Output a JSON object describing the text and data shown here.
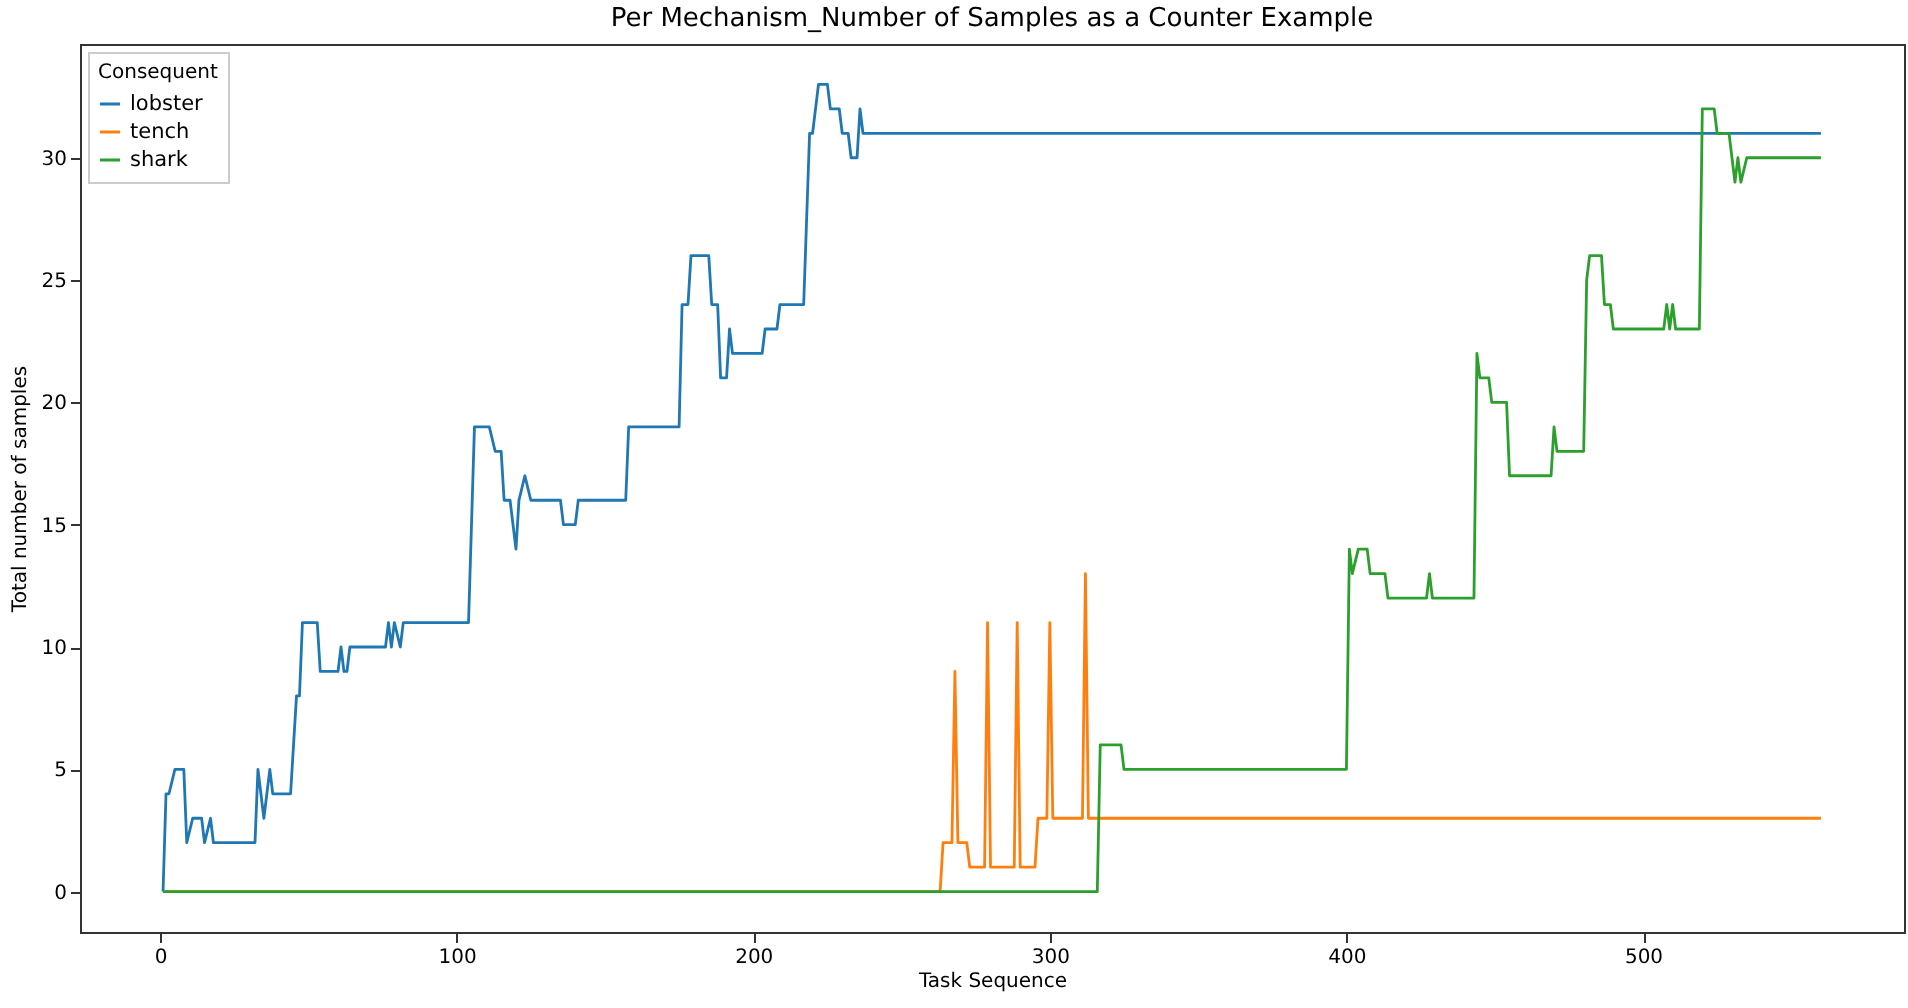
{
  "chart_data": {
    "type": "line",
    "title": "Per Mechanism_Number of Samples as a Counter Example",
    "xlabel": "Task Sequence",
    "ylabel": "Total number of samples",
    "legend_title": "Consequent",
    "legend": "top left",
    "grid": false,
    "line_style": "solid",
    "marker": "none",
    "xlim": [
      -27,
      588
    ],
    "xticks": [
      0,
      100,
      200,
      300,
      400,
      500
    ],
    "ylim": [
      -1.65,
      34.65
    ],
    "yticks": [
      0,
      5,
      10,
      15,
      20,
      25,
      30
    ],
    "series": [
      {
        "name": "lobster",
        "color": "#1f77b4",
        "x": [
          1,
          2,
          3,
          5,
          8,
          9,
          11,
          14,
          15,
          17,
          18,
          32,
          33,
          35,
          37,
          38,
          44,
          46,
          47,
          48,
          53,
          54,
          60,
          61,
          62,
          63,
          64,
          76,
          77,
          78,
          79,
          81,
          82,
          104,
          106,
          111,
          113,
          115,
          116,
          118,
          120,
          121,
          123,
          125,
          135,
          136,
          140,
          141,
          157,
          158,
          175,
          176,
          178,
          179,
          185,
          186,
          188,
          189,
          191,
          192,
          193,
          203,
          204,
          208,
          209,
          217,
          219,
          220,
          222,
          225,
          226,
          229,
          230,
          232,
          233,
          235,
          236,
          237,
          560
        ],
        "values": [
          0,
          4,
          4,
          5,
          5,
          2,
          3,
          3,
          2,
          3,
          2,
          2,
          5,
          3,
          5,
          4,
          4,
          8,
          8,
          11,
          11,
          9,
          9,
          10,
          9,
          9,
          10,
          10,
          11,
          10,
          11,
          10,
          11,
          11,
          19,
          19,
          18,
          18,
          16,
          16,
          14,
          16,
          17,
          16,
          16,
          15,
          15,
          16,
          16,
          19,
          19,
          24,
          24,
          26,
          26,
          24,
          24,
          21,
          21,
          23,
          22,
          22,
          23,
          23,
          24,
          24,
          31,
          31,
          33,
          33,
          32,
          32,
          31,
          31,
          30,
          30,
          32,
          31,
          31
        ]
      },
      {
        "name": "tench",
        "color": "#ff7f0e",
        "x": [
          1,
          263,
          264,
          267,
          268,
          269,
          272,
          273,
          278,
          279,
          280,
          288,
          289,
          290,
          295,
          296,
          299,
          300,
          301,
          311,
          312,
          313,
          560
        ],
        "values": [
          0,
          0,
          2,
          2,
          9,
          2,
          2,
          1,
          1,
          11,
          1,
          1,
          11,
          1,
          1,
          3,
          3,
          11,
          3,
          3,
          13,
          3,
          3
        ]
      },
      {
        "name": "shark",
        "color": "#2ca02c",
        "x": [
          1,
          316,
          317,
          324,
          325,
          400,
          401,
          402,
          404,
          407,
          408,
          413,
          414,
          427,
          428,
          429,
          443,
          444,
          445,
          448,
          449,
          454,
          455,
          469,
          470,
          471,
          480,
          481,
          482,
          486,
          487,
          489,
          490,
          507,
          508,
          509,
          510,
          511,
          519,
          520,
          524,
          525,
          529,
          531,
          532,
          533,
          535,
          560
        ],
        "values": [
          0,
          0,
          6,
          6,
          5,
          5,
          14,
          13,
          14,
          14,
          13,
          13,
          12,
          12,
          13,
          12,
          12,
          22,
          21,
          21,
          20,
          20,
          17,
          17,
          19,
          18,
          18,
          25,
          26,
          26,
          24,
          24,
          23,
          23,
          24,
          23,
          24,
          23,
          23,
          32,
          32,
          31,
          31,
          29,
          30,
          29,
          30,
          30
        ]
      }
    ]
  }
}
